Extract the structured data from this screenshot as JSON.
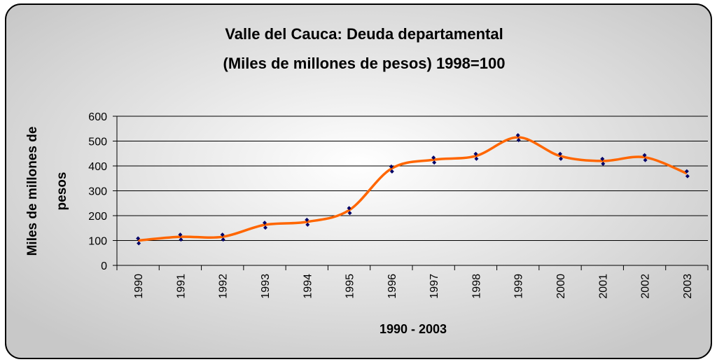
{
  "chart_data": {
    "type": "line",
    "title": [
      "Valle del Cauca: Deuda departamental",
      "(Miles de millones de pesos) 1998=100"
    ],
    "y_label": [
      "Miles de millones de",
      "pesos"
    ],
    "x_label": "1990 - 2003",
    "categories": [
      "1990",
      "1991",
      "1992",
      "1993",
      "1994",
      "1995",
      "1996",
      "1997",
      "1998",
      "1999",
      "2000",
      "2001",
      "2002",
      "2003"
    ],
    "series": [
      {
        "color": "#ff6600",
        "marker_color": "#000066",
        "values": [
          100,
          115,
          115,
          163,
          175,
          222,
          389,
          425,
          440,
          515,
          440,
          420,
          435,
          370
        ]
      }
    ],
    "ylim": [
      0,
      600
    ],
    "yticks": [
      0,
      100,
      200,
      300,
      400,
      500,
      600
    ],
    "grid": true,
    "smooth": true
  }
}
